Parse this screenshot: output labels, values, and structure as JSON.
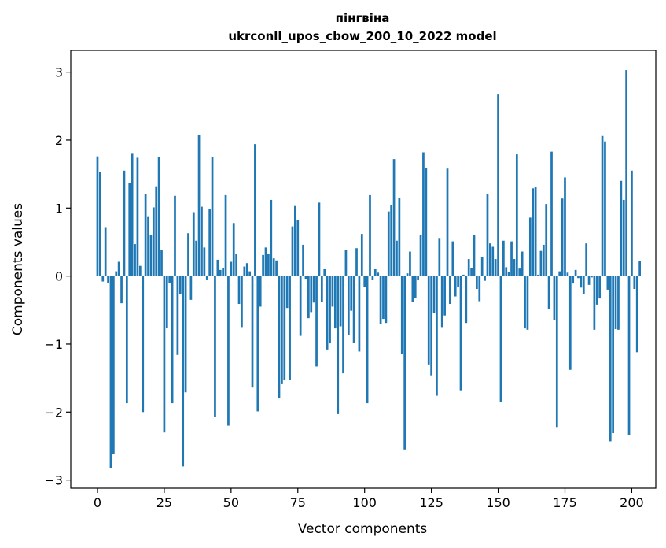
{
  "chart_data": {
    "type": "bar",
    "title": "пінгвіна",
    "subtitle": "ukrconll_upos_cbow_200_10_2022 model",
    "xlabel": "Vector components",
    "ylabel": "Components values",
    "xlim": [
      -10,
      209
    ],
    "ylim": [
      -3.12,
      3.32
    ],
    "xticks": [
      0,
      25,
      50,
      75,
      100,
      125,
      150,
      175,
      200
    ],
    "yticks": [
      -3,
      -2,
      -1,
      0,
      1,
      2,
      3
    ],
    "ytick_labels": [
      "−3",
      "−2",
      "−1",
      "0",
      "1",
      "2",
      "3"
    ],
    "grid": false,
    "bar_color": "#1f77b4",
    "values": [
      1.76,
      1.53,
      -0.08,
      0.72,
      -0.1,
      -2.82,
      -2.62,
      0.07,
      0.21,
      -0.4,
      1.55,
      -1.87,
      1.37,
      1.81,
      0.47,
      1.74,
      0.15,
      -2.0,
      1.21,
      0.88,
      0.61,
      1.01,
      1.32,
      1.75,
      0.38,
      -2.3,
      -0.76,
      -0.1,
      -1.87,
      1.18,
      -1.16,
      -0.26,
      -2.8,
      -1.71,
      0.63,
      -0.35,
      0.94,
      0.52,
      2.07,
      1.02,
      0.42,
      -0.05,
      0.98,
      1.75,
      -2.07,
      0.24,
      0.09,
      0.12,
      1.19,
      -2.2,
      0.21,
      0.78,
      0.32,
      -0.41,
      -0.75,
      0.14,
      0.19,
      0.07,
      -1.64,
      1.94,
      -1.99,
      -0.45,
      0.31,
      0.42,
      0.33,
      1.12,
      0.26,
      0.23,
      -1.8,
      -1.59,
      -1.53,
      -0.47,
      -1.53,
      0.73,
      1.03,
      0.82,
      -0.88,
      0.46,
      -0.04,
      -0.62,
      -0.53,
      -0.39,
      -1.33,
      1.08,
      -0.38,
      0.1,
      -1.08,
      -0.99,
      -0.45,
      -0.77,
      -2.03,
      -0.74,
      -1.43,
      0.38,
      -0.87,
      -0.51,
      -0.98,
      0.41,
      -1.11,
      0.62,
      -0.16,
      -1.87,
      1.19,
      -0.06,
      0.1,
      0.05,
      -0.7,
      -0.63,
      -0.69,
      0.95,
      1.05,
      1.72,
      0.52,
      1.15,
      -1.15,
      -2.55,
      0.04,
      0.36,
      -0.38,
      -0.32,
      -0.06,
      0.61,
      1.82,
      1.59,
      -1.3,
      -1.46,
      -0.54,
      -1.76,
      0.56,
      -0.75,
      -0.58,
      1.58,
      -0.41,
      0.51,
      -0.3,
      -0.16,
      -1.68,
      0.02,
      -0.69,
      0.25,
      0.12,
      0.6,
      -0.19,
      -0.37,
      0.28,
      -0.07,
      1.21,
      0.48,
      0.43,
      0.25,
      2.67,
      -1.85,
      0.52,
      0.13,
      0.06,
      0.51,
      0.25,
      1.79,
      0.11,
      0.36,
      -0.77,
      -0.79,
      0.86,
      1.29,
      1.31,
      0.02,
      0.37,
      0.46,
      1.06,
      -0.49,
      1.83,
      -0.65,
      -2.22,
      0.07,
      1.14,
      1.45,
      0.05,
      -1.38,
      -0.11,
      0.09,
      -0.03,
      -0.17,
      -0.27,
      0.48,
      -0.13,
      -0.02,
      -0.79,
      -0.42,
      -0.33,
      2.06,
      1.98,
      -0.2,
      -2.43,
      -2.31,
      -0.78,
      -0.79,
      1.4,
      1.12,
      3.03,
      -2.34,
      1.55,
      -0.19,
      -1.12,
      0.22
    ]
  }
}
